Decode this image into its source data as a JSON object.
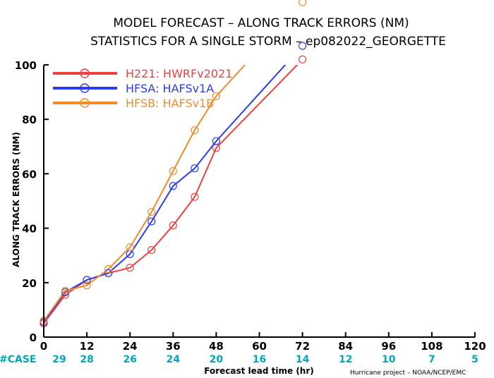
{
  "title_line1": "MODEL FORECAST – ALONG TRACK ERRORS (NM)",
  "title_line2": "STATISTICS FOR A SINGLE STORM – ep082022_GEORGETTE",
  "credit": "Hurricane project – NOAA/NCEP/EMC",
  "chart_data": {
    "type": "line",
    "xlabel": "Forecast lead time (hr)",
    "ylabel": "ALONG TRACK ERRORS (NM)",
    "xlim": [
      0,
      120
    ],
    "ylim": [
      0,
      100
    ],
    "xticks": [
      0,
      12,
      24,
      36,
      48,
      60,
      72,
      84,
      96,
      108,
      120
    ],
    "yticks": [
      0,
      20,
      40,
      60,
      80,
      100
    ],
    "grid": false,
    "legend_position": "top-left",
    "case_label": "#CASE",
    "cases": [
      {
        "x": 0,
        "n": "29"
      },
      {
        "x": 12,
        "n": "28"
      },
      {
        "x": 24,
        "n": "26"
      },
      {
        "x": 36,
        "n": "24"
      },
      {
        "x": 48,
        "n": "20"
      },
      {
        "x": 60,
        "n": "16"
      },
      {
        "x": 72,
        "n": "14"
      },
      {
        "x": 84,
        "n": "12"
      },
      {
        "x": 96,
        "n": "10"
      },
      {
        "x": 108,
        "n": "7"
      },
      {
        "x": 120,
        "n": "5"
      }
    ],
    "series": [
      {
        "name": "H221: HWRFv2021",
        "color": "#ef4040",
        "x": [
          0,
          6,
          12,
          18,
          24,
          30,
          36,
          42,
          48,
          72
        ],
        "y": [
          5,
          15.5,
          21,
          23.5,
          25.5,
          32,
          41,
          51.5,
          69.5,
          102
        ]
      },
      {
        "name": "HFSA: HAFSv1A",
        "color": "#2c3cf0",
        "x": [
          0,
          6,
          12,
          18,
          24,
          30,
          36,
          42,
          48,
          72
        ],
        "y": [
          5.5,
          16.5,
          21,
          23.5,
          30.5,
          42.5,
          55.5,
          62,
          72,
          107
        ]
      },
      {
        "name": "HFSB: HAFSv1B",
        "color": "#f28c28",
        "x": [
          0,
          6,
          12,
          18,
          24,
          30,
          36,
          42,
          48,
          72
        ],
        "y": [
          6,
          17,
          19,
          25,
          33,
          46,
          61,
          76,
          88.5,
          123
        ]
      }
    ]
  }
}
